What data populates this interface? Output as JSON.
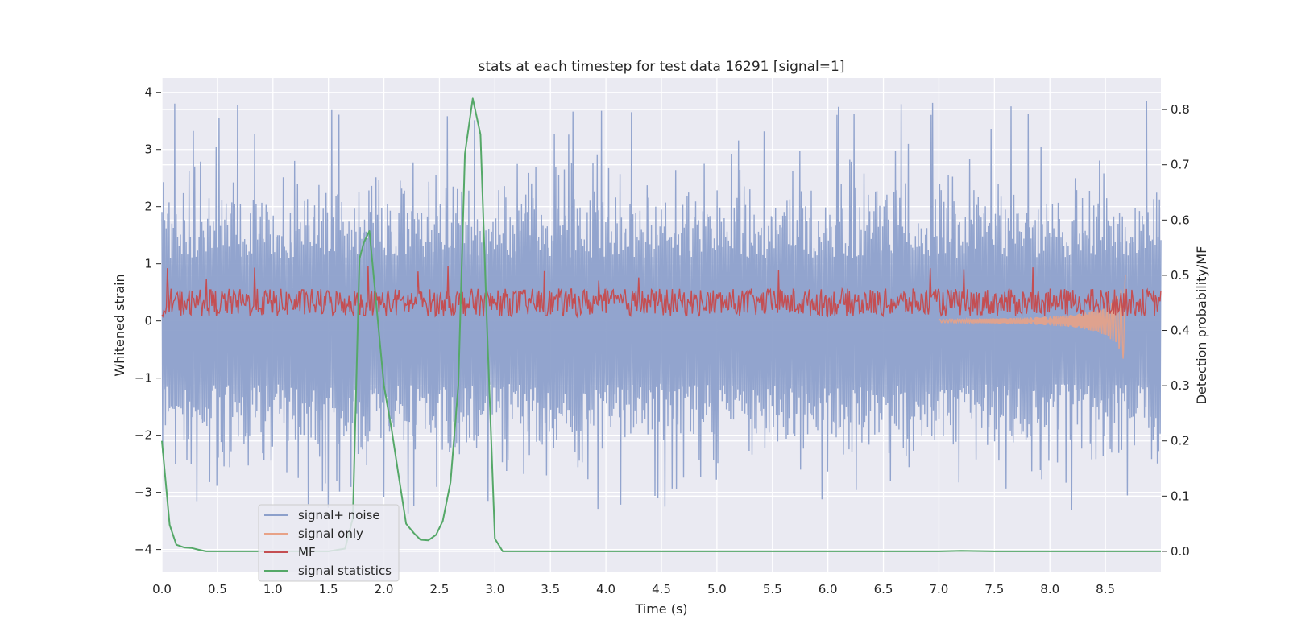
{
  "chart_data": {
    "type": "line",
    "title": "stats at each timestep for test data 16291 [signal=1]",
    "xlabel": "Time (s)",
    "ylabel": "Whitened strain",
    "y2label": "Detection probability/MF",
    "xlim": [
      0.0,
      9.0
    ],
    "ylim": [
      -4.4,
      4.25
    ],
    "y2lim": [
      -0.038,
      0.857
    ],
    "grid": true,
    "legend_position": "bottom-left",
    "x_ticks": [
      0.0,
      0.5,
      1.0,
      1.5,
      2.0,
      2.5,
      3.0,
      3.5,
      4.0,
      4.5,
      5.0,
      5.5,
      6.0,
      6.5,
      7.0,
      7.5,
      8.0,
      8.5
    ],
    "x_tick_labels": [
      "0.0",
      "0.5",
      "1.0",
      "1.5",
      "2.0",
      "2.5",
      "3.0",
      "3.5",
      "4.0",
      "4.5",
      "5.0",
      "5.5",
      "6.0",
      "6.5",
      "7.0",
      "7.5",
      "8.0",
      "8.5"
    ],
    "y_ticks": [
      4,
      3,
      2,
      1,
      0,
      -1,
      -2,
      -3,
      -4
    ],
    "y_tick_labels": [
      "4",
      "3",
      "2",
      "1",
      "0",
      "−1",
      "−2",
      "−3",
      "−4"
    ],
    "y2_ticks": [
      0.8,
      0.7,
      0.6,
      0.5,
      0.4,
      0.3,
      0.2,
      0.1,
      0.0
    ],
    "y2_tick_labels": [
      "0.8",
      "0.7",
      "0.6",
      "0.5",
      "0.4",
      "0.3",
      "0.2",
      "0.1",
      "0.0"
    ],
    "series": [
      {
        "name": "signal+ noise",
        "color": "#8da0cb",
        "axis": "left",
        "description_values": {
          "x_start": 0.0,
          "x_end": 9.0,
          "envelope_upper": 2.0,
          "envelope_lower": -2.0,
          "peak_max": 3.85,
          "peak_min": -3.4
        }
      },
      {
        "name": "signal only",
        "color": "#e8a287",
        "axis": "left",
        "x": [
          7.0,
          7.4,
          7.8,
          8.0,
          8.2,
          8.4,
          8.5,
          8.6,
          8.65,
          8.68
        ],
        "amplitude": [
          0.03,
          0.04,
          0.06,
          0.08,
          0.11,
          0.18,
          0.25,
          0.4,
          0.6,
          0.8
        ]
      },
      {
        "name": "MF",
        "color": "#c44e52",
        "axis": "left",
        "description_values": {
          "baseline": 0.2,
          "band_low": 0.05,
          "band_high": 0.7,
          "peak": 1.0
        }
      },
      {
        "name": "signal statistics",
        "color": "#55a868",
        "axis": "right",
        "x": [
          0.0,
          0.07,
          0.13,
          0.2,
          0.27,
          0.33,
          0.4,
          0.6,
          1.0,
          1.5,
          1.65,
          1.72,
          1.78,
          1.82,
          1.87,
          1.93,
          2.0,
          2.07,
          2.13,
          2.2,
          2.27,
          2.33,
          2.4,
          2.47,
          2.53,
          2.6,
          2.67,
          2.73,
          2.8,
          2.87,
          2.93,
          3.0,
          3.07,
          3.2,
          4.0,
          5.0,
          6.0,
          7.0,
          7.2,
          7.5,
          8.0,
          9.0
        ],
        "values": [
          0.2,
          0.048,
          0.012,
          0.007,
          0.006,
          0.003,
          0.0,
          0.0,
          0.0,
          0.0,
          0.005,
          0.06,
          0.53,
          0.56,
          0.58,
          0.45,
          0.3,
          0.22,
          0.14,
          0.05,
          0.033,
          0.021,
          0.02,
          0.03,
          0.055,
          0.125,
          0.3,
          0.72,
          0.82,
          0.755,
          0.4,
          0.023,
          0.0,
          0.0,
          0.0,
          0.0,
          0.0,
          0.0,
          0.001,
          0.0,
          0.0,
          0.0
        ]
      }
    ]
  }
}
